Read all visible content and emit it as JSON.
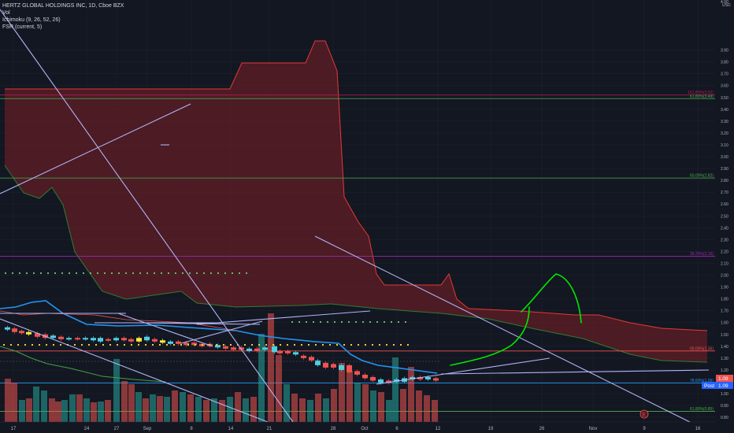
{
  "legend": {
    "symbol": "HERTZ GLOBAL HOLDINGS INC, 1D, Cboe BZX",
    "volume": "Vol",
    "ichimoku": "Ichimoku (9, 26, 52, 26)",
    "fsr": "FSR (current, 5)"
  },
  "price_axis": {
    "currency": "USD",
    "ticks": [
      "3.90",
      "3.80",
      "3.70",
      "3.60",
      "3.50",
      "3.40",
      "3.30",
      "3.20",
      "3.10",
      "3.00",
      "2.90",
      "2.80",
      "2.70",
      "2.60",
      "2.50",
      "2.40",
      "2.30",
      "2.20",
      "2.10",
      "2.00",
      "1.90",
      "1.80",
      "1.70",
      "1.60",
      "1.50",
      "1.40",
      "1.30",
      "1.20",
      "1.10",
      "1.00",
      "0.90",
      "0.80"
    ],
    "top_tick": "4.00"
  },
  "time_axis": {
    "ticks": [
      "17",
      "24",
      "27",
      "Sep",
      "8",
      "14",
      "21",
      "28",
      "Oct",
      "6",
      "12",
      "19",
      "26",
      "Nov",
      "9",
      "16"
    ]
  },
  "price_badges": {
    "last": "1.09",
    "post_label": "Post",
    "post": "1.09"
  },
  "fib_levels": [
    {
      "label": "161.80%(3.52)",
      "price": 3.52,
      "color": "#c2185b"
    },
    {
      "label": "61.80%(3.49)",
      "price": 3.49,
      "color": "#4caf50"
    },
    {
      "label": "50.00%(2.82)",
      "price": 2.82,
      "color": "#4caf50"
    },
    {
      "label": "38.20%(2.16)",
      "price": 2.16,
      "color": "#9c27b0"
    },
    {
      "label": "00.00%(1.36)",
      "price": 1.36,
      "color": "#ef5350"
    },
    {
      "label": "78.60%(1.09)",
      "price": 1.09,
      "color": "#2196f3"
    },
    {
      "label": "61.80%(0.85)",
      "price": 0.85,
      "color": "#4caf50"
    }
  ],
  "colors": {
    "background": "#131722",
    "up": "#26a69a",
    "down": "#ef5350",
    "cloud": "#7b1f26",
    "trendline": "#b2b5f5",
    "drawing": "#00e600",
    "axis_text": "#b2b5be"
  },
  "marker": "E"
}
